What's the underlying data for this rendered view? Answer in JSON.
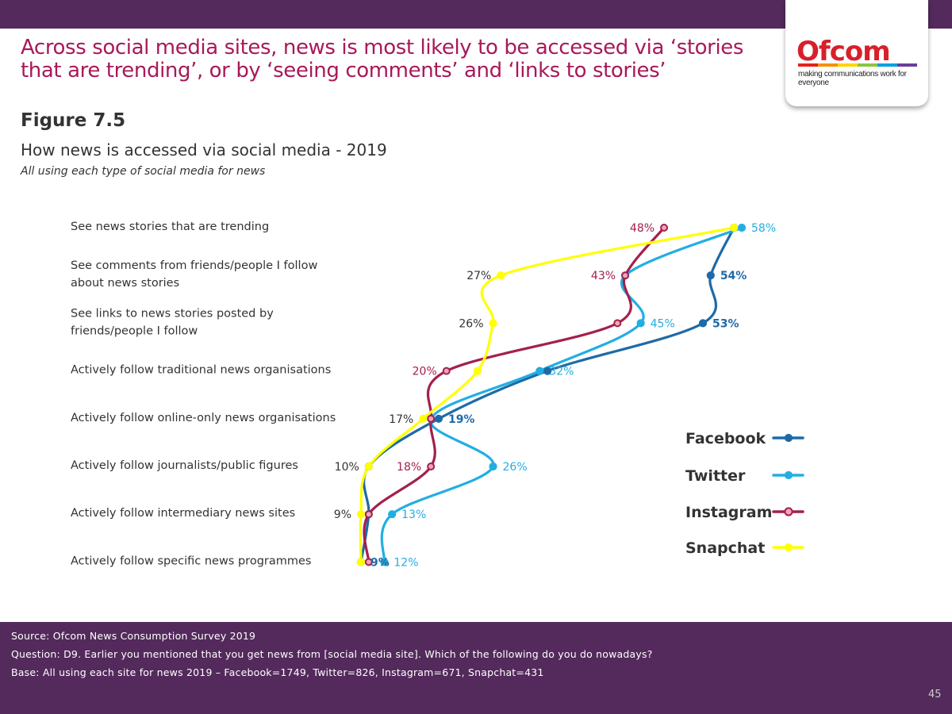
{
  "logo": {
    "text": "Ofcom",
    "tagline": "making communications work for everyone"
  },
  "headline": "Across social media sites, news is most likely to be accessed via ‘stories that are trending’, or by ‘seeing comments’ and ‘links to stories’",
  "figure_label": "Figure 7.5",
  "chart_data": {
    "type": "line",
    "title": "How news is accessed via social media - 2019",
    "subtitle": "All using each type of social media for news",
    "categories": [
      "See news stories that are trending",
      "See comments from friends/people I follow about news stories",
      "See links to news stories posted by friends/people I follow",
      "Actively follow traditional news organisations",
      "Actively follow online-only news organisations",
      "Actively follow journalists/public figures",
      "Actively follow intermediary news sites",
      "Actively follow specific news programmes"
    ],
    "category_lines": [
      [
        "See news stories that are trending"
      ],
      [
        "See comments from friends/people I follow",
        "about news stories"
      ],
      [
        "See links to news stories posted by",
        "friends/people I follow"
      ],
      [
        "Actively follow traditional news organisations"
      ],
      [
        "Actively follow online-only news organisations"
      ],
      [
        "Actively follow journalists/public figures"
      ],
      [
        "Actively follow intermediary news sites"
      ],
      [
        "Actively follow specific news programmes"
      ]
    ],
    "series": [
      {
        "name": "Facebook",
        "color": "#1e6aa8",
        "values": [
          57,
          54,
          53,
          33,
          19,
          10,
          10,
          9
        ],
        "labels": [
          "",
          "54%",
          "53%",
          "",
          "19%",
          "",
          "",
          "9%"
        ]
      },
      {
        "name": "Twitter",
        "color": "#22aee2",
        "values": [
          58,
          43,
          45,
          32,
          18,
          26,
          13,
          12
        ],
        "labels": [
          "58%",
          "",
          "45%",
          "32%",
          "",
          "26%",
          "13%",
          "12%"
        ]
      },
      {
        "name": "Instagram",
        "color": "#a3204d",
        "values": [
          48,
          43,
          42,
          20,
          18,
          18,
          10,
          10
        ],
        "labels": [
          "48%",
          "43%",
          "",
          "20%",
          "",
          "18%",
          "",
          ""
        ]
      },
      {
        "name": "Snapchat",
        "color": "#ffff00",
        "values": [
          57,
          27,
          26,
          24,
          17,
          10,
          9,
          9
        ],
        "labels": [
          "",
          "27%",
          "26%",
          "",
          "17%",
          "10%",
          "9%",
          ""
        ]
      }
    ],
    "legend_position": "right",
    "grid": false
  },
  "footer": {
    "source": "Source: Ofcom News Consumption Survey 2019",
    "question": "Question: D9. Earlier you mentioned that you get news from [social media site]. Which of the following do you do nowadays?",
    "base": "Base: All using each site for news 2019 – Facebook=1749, Twitter=826, Instagram=671, Snapchat=431"
  },
  "page_number": "45"
}
